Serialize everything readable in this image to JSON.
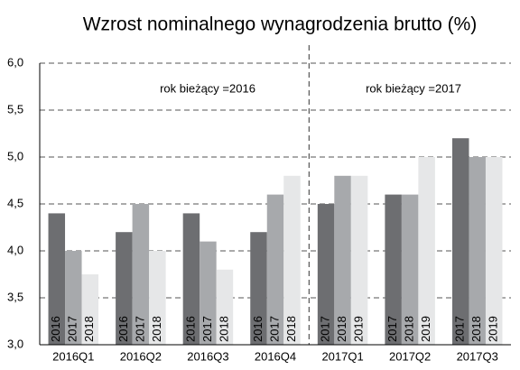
{
  "chart_data": {
    "type": "bar",
    "title": "Wzrost nominalnego wynagrodzenia brutto (%)",
    "categories": [
      "2016Q1",
      "2016Q2",
      "2016Q3",
      "2016Q4",
      "2017Q1",
      "2017Q2",
      "2017Q3"
    ],
    "series": [
      {
        "color": "#6d6e71",
        "values": [
          4.4,
          4.2,
          4.4,
          4.2,
          4.5,
          4.6,
          5.2
        ],
        "labels": [
          "2016",
          "2016",
          "2016",
          "2016",
          "2017",
          "2017",
          "2017"
        ]
      },
      {
        "color": "#a7a9ac",
        "values": [
          4.0,
          4.5,
          4.1,
          4.6,
          4.8,
          4.6,
          5.0
        ],
        "labels": [
          "2017",
          "2017",
          "2017",
          "2017",
          "2018",
          "2018",
          "2018"
        ]
      },
      {
        "color": "#e6e7e8",
        "values": [
          3.75,
          4.0,
          3.8,
          4.8,
          4.8,
          5.0,
          5.0
        ],
        "labels": [
          "2018",
          "2018",
          "2018",
          "2018",
          "2019",
          "2019",
          "2019"
        ]
      }
    ],
    "ylim": [
      3,
      6
    ],
    "yticks": [
      {
        "value": 3,
        "label": "3,0"
      },
      {
        "value": 3.5,
        "label": "3,5"
      },
      {
        "value": 4,
        "label": "4,0"
      },
      {
        "value": 4.5,
        "label": "4,5"
      },
      {
        "value": 5,
        "label": "5,0"
      },
      {
        "value": 5.5,
        "label": "5,5"
      },
      {
        "value": 6,
        "label": "6,0"
      }
    ],
    "grid": true,
    "annotations": [
      "rok bieżący =2016",
      "rok bieżący =2017"
    ]
  }
}
